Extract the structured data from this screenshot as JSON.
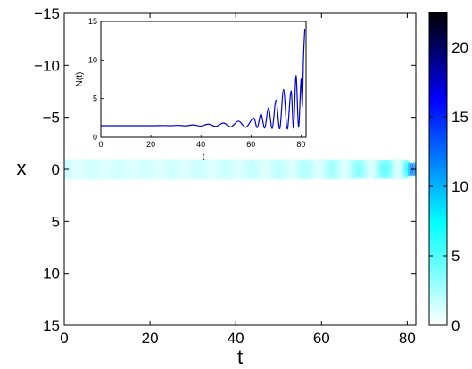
{
  "chart_data": [
    {
      "panel": "main",
      "type": "heatmap",
      "xlabel": "t",
      "ylabel": "x",
      "xlim": [
        0,
        82
      ],
      "ylim": [
        15,
        -15
      ],
      "xticks": [
        0,
        20,
        40,
        60,
        80
      ],
      "xtick_labels": [
        "0",
        "20",
        "40",
        "60",
        "80"
      ],
      "yticks": [
        -15,
        -10,
        -5,
        0,
        5,
        10,
        15
      ],
      "ytick_labels": [
        "−15",
        "−10",
        "−5",
        "0",
        "5",
        "10",
        "15"
      ],
      "colorbar": {
        "range": [
          0,
          22.5
        ],
        "ticks": [
          0,
          5,
          10,
          15,
          20
        ],
        "tick_labels": [
          "0",
          "5",
          "10",
          "15",
          "20"
        ],
        "colormap": [
          "#ffffff",
          "#00ffff",
          "#0000ff",
          "#000000"
        ]
      },
      "description_of_field": "localized band around x=0 whose intensity oscillates with growing amplitude, peaking near t=81",
      "band_intensity": [
        {
          "t": 0,
          "peak": 1.5
        },
        {
          "t": 10,
          "peak": 1.5
        },
        {
          "t": 20,
          "peak": 1.5
        },
        {
          "t": 30,
          "peak": 1.6
        },
        {
          "t": 40,
          "peak": 1.8
        },
        {
          "t": 50,
          "peak": 2.1
        },
        {
          "t": 55,
          "peak": 2.5
        },
        {
          "t": 61,
          "peak": 3
        },
        {
          "t": 67,
          "peak": 3.8
        },
        {
          "t": 73,
          "peak": 5
        },
        {
          "t": 77,
          "peak": 6.2
        },
        {
          "t": 80,
          "peak": 9
        },
        {
          "t": 81,
          "peak": 13
        }
      ]
    },
    {
      "panel": "inset",
      "type": "line",
      "xlabel": "t",
      "ylabel": "N(t)",
      "xlim": [
        0,
        82
      ],
      "ylim": [
        0,
        15
      ],
      "xticks": [
        0,
        20,
        40,
        60,
        80
      ],
      "xtick_labels": [
        "0",
        "20",
        "40",
        "60",
        "80"
      ],
      "yticks": [
        0,
        5,
        10,
        15
      ],
      "ytick_labels": [
        "0",
        "5",
        "10",
        "15"
      ],
      "series": [
        {
          "color": "#0000cc",
          "x": [
            0,
            10,
            20,
            25,
            28,
            31,
            34,
            37,
            40,
            43,
            46,
            49,
            52,
            55,
            58,
            61,
            62.5,
            64,
            65.5,
            67,
            68.5,
            70,
            71.5,
            73,
            74.5,
            76,
            77,
            78,
            79,
            80,
            80.5,
            81,
            81.5
          ],
          "y": [
            1.5,
            1.5,
            1.5,
            1.52,
            1.5,
            1.55,
            1.48,
            1.6,
            1.45,
            1.7,
            1.4,
            1.85,
            1.35,
            2.1,
            1.3,
            2.5,
            1.25,
            3.0,
            1.2,
            3.8,
            1.15,
            4.8,
            1.1,
            6.2,
            1.05,
            6.0,
            1.2,
            8.0,
            1.3,
            7.5,
            4.0,
            10.5,
            14.0
          ]
        }
      ]
    }
  ]
}
